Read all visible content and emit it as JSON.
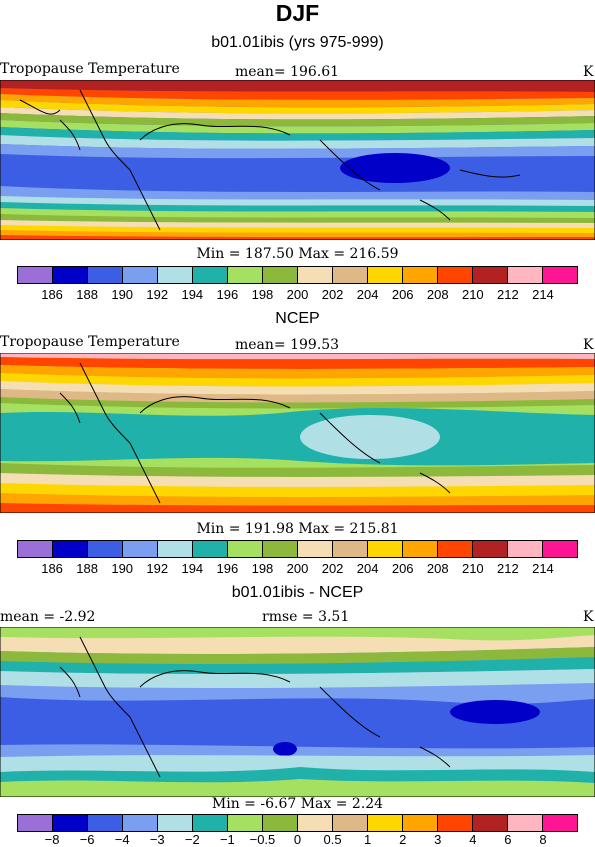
{
  "header": {
    "season": "DJF"
  },
  "panels": [
    {
      "title": "b01.01ibis (yrs 975-999)",
      "left_label": "Tropopause Temperature",
      "center_label": "mean= 196.61",
      "right_label": "K",
      "min_max": "Min = 187.50 Max = 216.59",
      "colorbar": {
        "ticks": [
          "186",
          "188",
          "190",
          "192",
          "194",
          "196",
          "198",
          "200",
          "202",
          "204",
          "206",
          "208",
          "210",
          "212",
          "214"
        ],
        "colors": [
          "#9a6fd8",
          "#0000c8",
          "#3c5ee4",
          "#7a9ff0",
          "#b0e0e6",
          "#20b2aa",
          "#a6e060",
          "#8cb83c",
          "#f5deb3",
          "#deb887",
          "#ffd700",
          "#ffa500",
          "#ff4500",
          "#b22222",
          "#ffb6c1",
          "#ff1493"
        ]
      }
    },
    {
      "title": "NCEP",
      "left_label": "Tropopause Temperature",
      "center_label": "mean= 199.53",
      "right_label": "K",
      "min_max": "Min = 191.98 Max = 215.81",
      "colorbar": {
        "ticks": [
          "186",
          "188",
          "190",
          "192",
          "194",
          "196",
          "198",
          "200",
          "202",
          "204",
          "206",
          "208",
          "210",
          "212",
          "214"
        ],
        "colors": [
          "#9a6fd8",
          "#0000c8",
          "#3c5ee4",
          "#7a9ff0",
          "#b0e0e6",
          "#20b2aa",
          "#a6e060",
          "#8cb83c",
          "#f5deb3",
          "#deb887",
          "#ffd700",
          "#ffa500",
          "#ff4500",
          "#b22222",
          "#ffb6c1",
          "#ff1493"
        ]
      }
    },
    {
      "title": "b01.01ibis - NCEP",
      "left_label": "mean =   -2.92",
      "center_label": "rmse =    3.51",
      "right_label": "K",
      "min_max": "Min =   -6.67 Max =    2.24",
      "colorbar": {
        "ticks": [
          "−8",
          "−6",
          "−4",
          "−3",
          "−2",
          "−1",
          "−0.5",
          "0",
          "0.5",
          "1",
          "2",
          "3",
          "4",
          "6",
          "8"
        ],
        "colors": [
          "#9a6fd8",
          "#0000c8",
          "#3c5ee4",
          "#7a9ff0",
          "#b0e0e6",
          "#20b2aa",
          "#a6e060",
          "#8cb83c",
          "#f5deb3",
          "#deb887",
          "#ffd700",
          "#ffa500",
          "#ff4500",
          "#b22222",
          "#ffb6c1",
          "#ff1493"
        ]
      }
    }
  ]
}
